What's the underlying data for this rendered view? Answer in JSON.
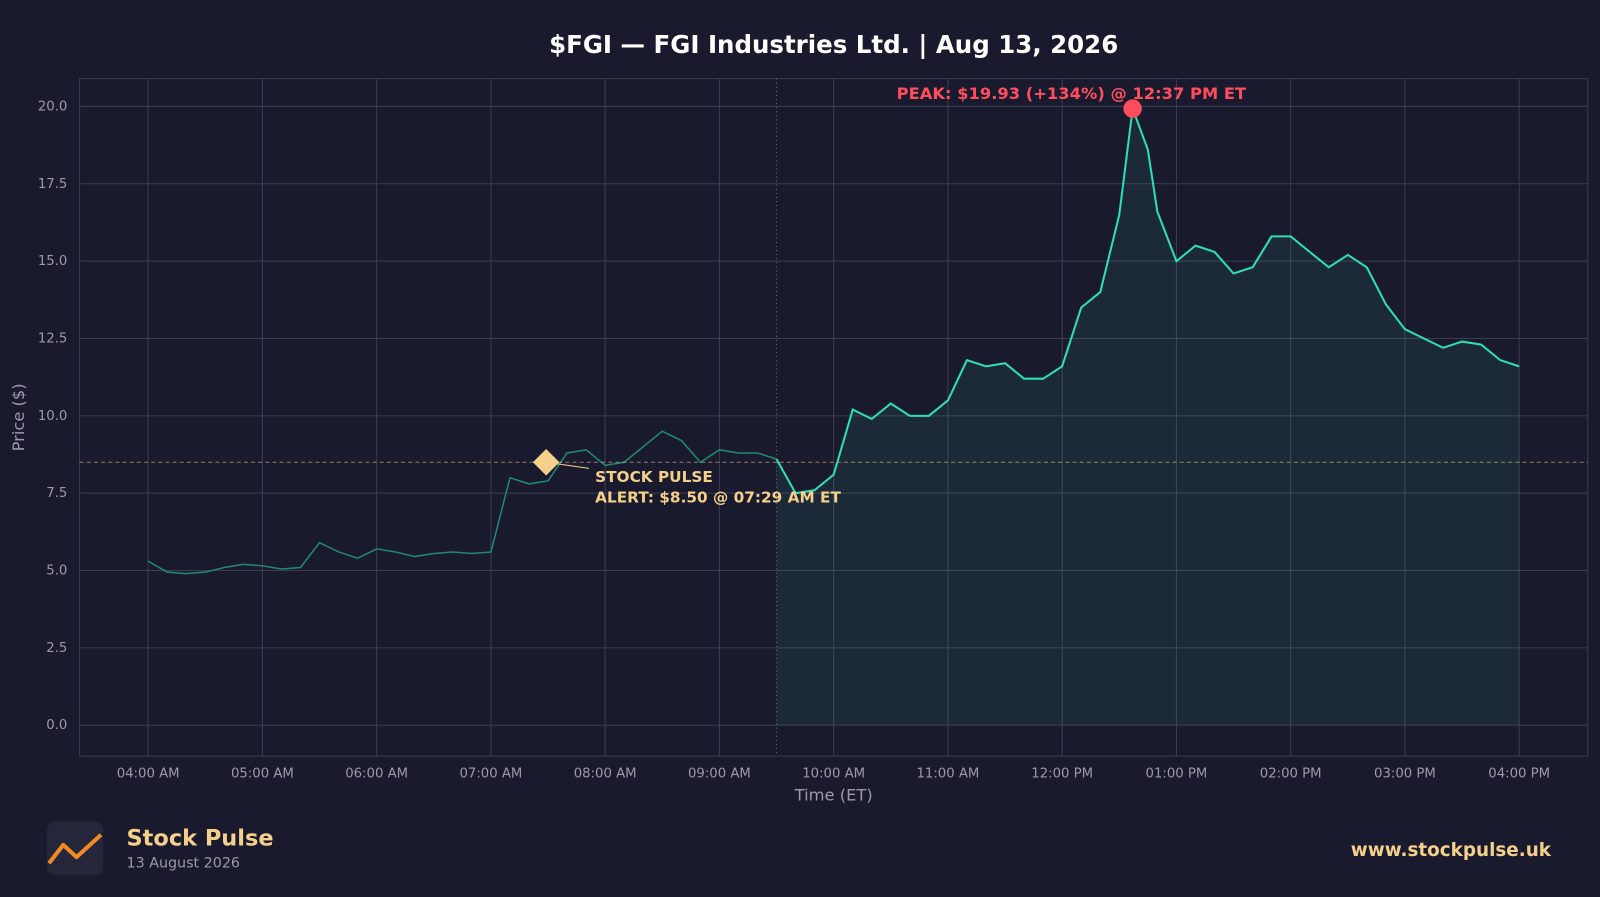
{
  "chart_data": {
    "type": "line",
    "title": "$FGI — FGI Industries Ltd.  |  Aug 13, 2026",
    "xlabel": "Time (ET)",
    "ylabel": "Price ($)",
    "x": [
      "04:00",
      "04:10",
      "04:20",
      "04:30",
      "04:40",
      "04:50",
      "05:00",
      "05:10",
      "05:20",
      "05:30",
      "05:40",
      "05:50",
      "06:00",
      "06:10",
      "06:20",
      "06:30",
      "06:40",
      "06:50",
      "07:00",
      "07:10",
      "07:20",
      "07:30",
      "07:40",
      "07:50",
      "08:00",
      "08:10",
      "08:20",
      "08:30",
      "08:40",
      "08:50",
      "09:00",
      "09:10",
      "09:20",
      "09:30",
      "09:40",
      "09:50",
      "10:00",
      "10:10",
      "10:20",
      "10:30",
      "10:40",
      "10:50",
      "11:00",
      "11:10",
      "11:20",
      "11:30",
      "11:40",
      "11:50",
      "12:00",
      "12:10",
      "12:20",
      "12:30",
      "12:37",
      "12:45",
      "12:50",
      "13:00",
      "13:10",
      "13:20",
      "13:30",
      "13:40",
      "13:50",
      "14:00",
      "14:10",
      "14:20",
      "14:30",
      "14:40",
      "14:50",
      "15:00",
      "15:10",
      "15:20",
      "15:30",
      "15:40",
      "15:50",
      "16:00"
    ],
    "series": [
      {
        "name": "FGI",
        "color": "#2de0b0",
        "premarket_color": "#1f8a72",
        "values": [
          5.3,
          4.95,
          4.9,
          4.95,
          5.1,
          5.2,
          5.15,
          5.05,
          5.1,
          5.9,
          5.6,
          5.4,
          5.7,
          5.6,
          5.45,
          5.55,
          5.6,
          5.55,
          5.6,
          8.0,
          7.8,
          7.9,
          8.8,
          8.9,
          8.4,
          8.5,
          9.0,
          9.5,
          9.2,
          8.5,
          8.9,
          8.8,
          8.8,
          8.6,
          7.5,
          7.6,
          8.1,
          10.2,
          9.9,
          10.4,
          10.0,
          10.0,
          10.5,
          11.8,
          11.6,
          11.7,
          11.2,
          11.2,
          11.6,
          13.5,
          14.0,
          16.5,
          19.93,
          18.6,
          16.6,
          15.0,
          15.5,
          15.3,
          14.6,
          14.8,
          15.8,
          15.8,
          15.3,
          14.8,
          15.2,
          14.8,
          13.6,
          12.8,
          12.5,
          12.2,
          12.4,
          12.3,
          11.8,
          11.6
        ]
      }
    ],
    "market_open": "09:30",
    "xlim": [
      "03:24",
      "16:36"
    ],
    "xticks": [
      {
        "value": "04:00",
        "label": "04:00 AM"
      },
      {
        "value": "05:00",
        "label": "05:00 AM"
      },
      {
        "value": "06:00",
        "label": "06:00 AM"
      },
      {
        "value": "07:00",
        "label": "07:00 AM"
      },
      {
        "value": "08:00",
        "label": "08:00 AM"
      },
      {
        "value": "09:00",
        "label": "09:00 AM"
      },
      {
        "value": "10:00",
        "label": "10:00 AM"
      },
      {
        "value": "11:00",
        "label": "11:00 AM"
      },
      {
        "value": "12:00",
        "label": "12:00 PM"
      },
      {
        "value": "13:00",
        "label": "01:00 PM"
      },
      {
        "value": "14:00",
        "label": "02:00 PM"
      },
      {
        "value": "15:00",
        "label": "03:00 PM"
      },
      {
        "value": "16:00",
        "label": "04:00 PM"
      }
    ],
    "ylim": [
      -1.0,
      20.9
    ],
    "yticks": [
      {
        "value": 0,
        "label": "0.0"
      },
      {
        "value": 2.5,
        "label": "2.5"
      },
      {
        "value": 5,
        "label": "5.0"
      },
      {
        "value": 7.5,
        "label": "7.5"
      },
      {
        "value": 10,
        "label": "10.0"
      },
      {
        "value": 12.5,
        "label": "12.5"
      },
      {
        "value": 15,
        "label": "15.0"
      },
      {
        "value": 17.5,
        "label": "17.5"
      },
      {
        "value": 20,
        "label": "20.0"
      }
    ],
    "grid": true,
    "peak": {
      "x": "12:37",
      "value": 19.93,
      "label": "PEAK: $19.93 (+134%) @ 12:37 PM ET",
      "color": "#ff4d5e"
    },
    "alert": {
      "x": "07:29",
      "value": 8.5,
      "label": [
        "STOCK PULSE",
        "ALERT: $8.50 @ 07:29 AM ET"
      ],
      "color": "#f5d08a"
    }
  },
  "footer": {
    "brand": "Stock Pulse",
    "date": "13 August 2026",
    "url": "www.stockpulse.uk"
  }
}
